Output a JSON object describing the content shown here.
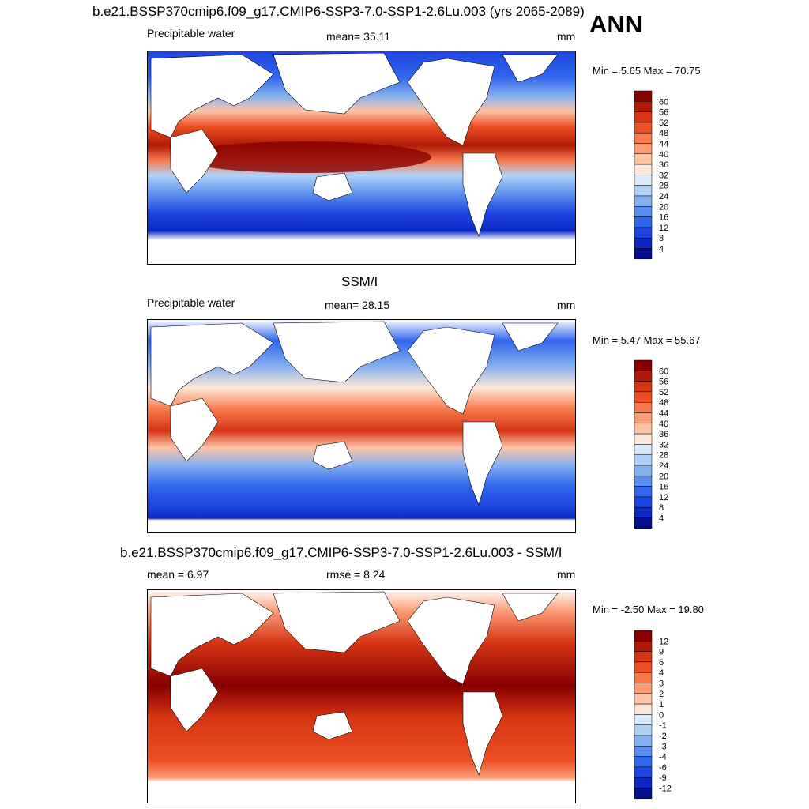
{
  "header": {
    "season": "ANN"
  },
  "panels": [
    {
      "title": "b.e21.BSSP370cmip6.f09_g17.CMIP6-SSP3-7.0-SSP1-2.6Lu.003 (yrs 2065-2089)",
      "left_label": "Precipitable water",
      "center_label": "mean=  35.11",
      "units": "mm",
      "minmax": "Min =   5.65 Max =  70.75",
      "colorbar_labels": [
        "60",
        "56",
        "52",
        "48",
        "44",
        "40",
        "36",
        "32",
        "28",
        "24",
        "20",
        "16",
        "12",
        "8",
        "4"
      ],
      "colors": [
        "#870000",
        "#b01a06",
        "#d63514",
        "#ec4f22",
        "#f77a4f",
        "#fb9d77",
        "#fdc4a6",
        "#fde7d8",
        "#d7e9fb",
        "#b0d2f7",
        "#85b1ef",
        "#5a8df0",
        "#3166ee",
        "#1c44e0",
        "#0c28c4",
        "#020e8a"
      ]
    },
    {
      "title": "SSM/I",
      "left_label": "Precipitable water",
      "center_label": "mean=  28.15",
      "units": "mm",
      "minmax": "Min =   5.47 Max =  55.67",
      "colorbar_labels": [
        "60",
        "56",
        "52",
        "48",
        "44",
        "40",
        "36",
        "32",
        "28",
        "24",
        "20",
        "16",
        "12",
        "8",
        "4"
      ],
      "colors": [
        "#870000",
        "#b01a06",
        "#d63514",
        "#ec4f22",
        "#f77a4f",
        "#fb9d77",
        "#fdc4a6",
        "#fde7d8",
        "#d7e9fb",
        "#b0d2f7",
        "#85b1ef",
        "#5a8df0",
        "#3166ee",
        "#1c44e0",
        "#0c28c4",
        "#020e8a"
      ]
    },
    {
      "title": "b.e21.BSSP370cmip6.f09_g17.CMIP6-SSP3-7.0-SSP1-2.6Lu.003 - SSM/I",
      "left_label": "mean =   6.97",
      "center_label": "rmse =   8.24",
      "units": "mm",
      "minmax": "Min =  -2.50 Max =  19.80",
      "colorbar_labels": [
        "12",
        "9",
        "6",
        "4",
        "3",
        "2",
        "1",
        "0",
        "-1",
        "-2",
        "-3",
        "-4",
        "-6",
        "-9",
        "-12"
      ],
      "colors": [
        "#870000",
        "#b01a06",
        "#d63514",
        "#ec4f22",
        "#f77a4f",
        "#fb9d77",
        "#fdc4a6",
        "#fde7d8",
        "#d7e9fb",
        "#b0d2f7",
        "#85b1ef",
        "#5a8df0",
        "#3166ee",
        "#1c44e0",
        "#0c28c4",
        "#020e8a"
      ]
    }
  ]
}
